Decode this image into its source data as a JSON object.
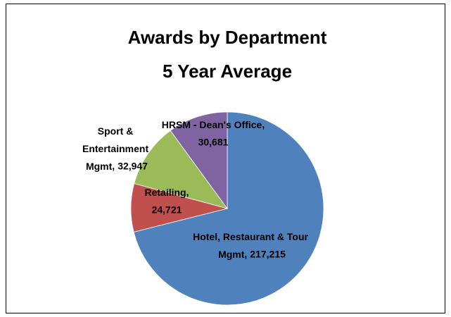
{
  "chart_data": {
    "type": "pie",
    "title": [
      "Awards by Department",
      "5 Year Average"
    ],
    "categories": [
      "Hotel, Restaurant & Tour Mgmt",
      "Retailing",
      "Sport & Entertainment Mgmt",
      "HRSM - Dean's Office"
    ],
    "values": [
      217215,
      24721,
      32947,
      30681
    ],
    "value_labels": [
      "217,215",
      "24,721",
      "32,947",
      "30,681"
    ],
    "label_separator": ",",
    "colors": [
      "#4f81bd",
      "#c0504d",
      "#9bbb59",
      "#8064a2"
    ],
    "start_angle": 0,
    "direction": "clockwise"
  }
}
